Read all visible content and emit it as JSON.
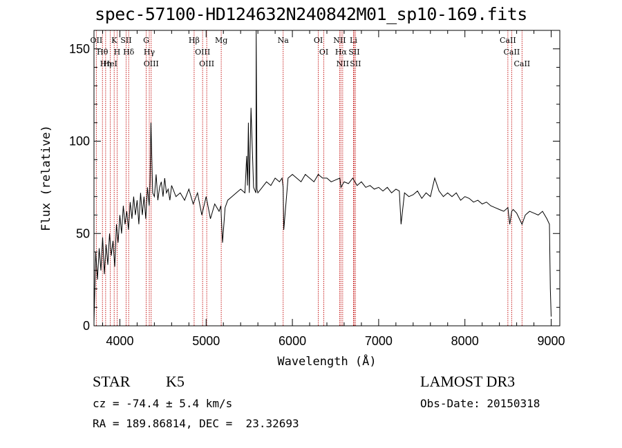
{
  "header": {
    "title": "spec-57100-HD124632N240842M01_sp10-169.fits"
  },
  "info": {
    "object_class": "STAR",
    "subclass": "K5",
    "survey": "LAMOST DR3",
    "redshift_line": "cz = -74.4 ± 5.4 km/s",
    "obs_date_line": "Obs-Date: 20150318",
    "coords_line": "RA = 189.86814, DEC =  23.32693"
  },
  "chart_data": {
    "type": "line",
    "title": "spec-57100-HD124632N240842M01_sp10-169.fits",
    "xlabel": "Wavelength (Å)",
    "ylabel": "Flux (relative)",
    "xlim": [
      3700,
      9100
    ],
    "ylim": [
      0,
      160
    ],
    "xticks": [
      4000,
      5000,
      6000,
      7000,
      8000,
      9000
    ],
    "yticks": [
      0,
      50,
      100,
      150
    ],
    "grid": false,
    "series": [
      {
        "color": "#000000",
        "x": [
          3700,
          3720,
          3740,
          3760,
          3780,
          3800,
          3820,
          3840,
          3860,
          3880,
          3900,
          3920,
          3940,
          3960,
          3980,
          4000,
          4020,
          4040,
          4060,
          4080,
          4100,
          4120,
          4140,
          4160,
          4180,
          4200,
          4220,
          4240,
          4260,
          4280,
          4300,
          4320,
          4340,
          4350,
          4360,
          4380,
          4400,
          4420,
          4440,
          4460,
          4480,
          4500,
          4520,
          4540,
          4560,
          4580,
          4600,
          4650,
          4700,
          4750,
          4800,
          4850,
          4900,
          4950,
          5000,
          5050,
          5100,
          5150,
          5170,
          5190,
          5220,
          5250,
          5300,
          5350,
          5400,
          5450,
          5470,
          5480,
          5490,
          5500,
          5520,
          5550,
          5577,
          5580,
          5590,
          5600,
          5650,
          5700,
          5750,
          5800,
          5850,
          5880,
          5893,
          5900,
          5950,
          6000,
          6050,
          6100,
          6150,
          6200,
          6250,
          6300,
          6350,
          6400,
          6450,
          6500,
          6550,
          6563,
          6600,
          6650,
          6700,
          6750,
          6800,
          6850,
          6900,
          6950,
          7000,
          7050,
          7100,
          7150,
          7200,
          7240,
          7260,
          7300,
          7350,
          7400,
          7450,
          7500,
          7550,
          7600,
          7650,
          7700,
          7750,
          7800,
          7850,
          7900,
          7950,
          8000,
          8050,
          8100,
          8150,
          8200,
          8250,
          8300,
          8350,
          8400,
          8450,
          8498,
          8520,
          8542,
          8560,
          8600,
          8662,
          8700,
          8750,
          8800,
          8850,
          8900,
          8950,
          8980,
          8990,
          9000
        ],
        "y": [
          2,
          40,
          25,
          42,
          30,
          48,
          28,
          44,
          33,
          50,
          38,
          46,
          32,
          55,
          45,
          60,
          50,
          65,
          55,
          62,
          52,
          67,
          58,
          70,
          60,
          68,
          55,
          72,
          60,
          70,
          58,
          75,
          65,
          78,
          110,
          72,
          70,
          82,
          68,
          75,
          78,
          70,
          80,
          72,
          74,
          68,
          76,
          70,
          72,
          68,
          74,
          66,
          72,
          60,
          70,
          58,
          66,
          62,
          65,
          45,
          64,
          68,
          70,
          72,
          74,
          72,
          92,
          76,
          110,
          72,
          118,
          75,
          72,
          160,
          74,
          72,
          75,
          78,
          76,
          80,
          78,
          80,
          75,
          52,
          80,
          82,
          80,
          78,
          82,
          80,
          78,
          82,
          80,
          80,
          78,
          79,
          80,
          75,
          78,
          77,
          80,
          76,
          78,
          75,
          76,
          74,
          75,
          73,
          75,
          72,
          74,
          73,
          55,
          72,
          70,
          71,
          73,
          69,
          72,
          70,
          80,
          73,
          70,
          72,
          70,
          72,
          68,
          70,
          69,
          67,
          68,
          66,
          67,
          65,
          64,
          63,
          62,
          64,
          55,
          62,
          63,
          61,
          55,
          60,
          62,
          61,
          60,
          62,
          58,
          55,
          20,
          5
        ]
      }
    ],
    "line_markers": [
      {
        "label": "OII",
        "x": 3727
      },
      {
        "label": "Hθ",
        "x": 3798
      },
      {
        "label": "Hη",
        "x": 3835
      },
      {
        "label": "HeI",
        "x": 3889
      },
      {
        "label": "K",
        "x": 3934
      },
      {
        "label": "H",
        "x": 3968
      },
      {
        "label": "SII",
        "x": 4072
      },
      {
        "label": "Hδ",
        "x": 4102
      },
      {
        "label": "G",
        "x": 4305
      },
      {
        "label": "Hγ",
        "x": 4341
      },
      {
        "label": "OIII",
        "x": 4363
      },
      {
        "label": "Hβ",
        "x": 4861
      },
      {
        "label": "OIII",
        "x": 4959
      },
      {
        "label": "OIII",
        "x": 5007
      },
      {
        "label": "Mg",
        "x": 5175
      },
      {
        "label": "Na",
        "x": 5893
      },
      {
        "label": "OI",
        "x": 6300
      },
      {
        "label": "OI",
        "x": 6364
      },
      {
        "label": "NII",
        "x": 6548
      },
      {
        "label": "Hα",
        "x": 6563
      },
      {
        "label": "NII",
        "x": 6583
      },
      {
        "label": "Li",
        "x": 6708
      },
      {
        "label": "SII",
        "x": 6716
      },
      {
        "label": "SII",
        "x": 6731
      },
      {
        "label": "CaII",
        "x": 8498
      },
      {
        "label": "CaII",
        "x": 8542
      },
      {
        "label": "CaII",
        "x": 8662
      }
    ],
    "marker_color": "#c00000"
  }
}
